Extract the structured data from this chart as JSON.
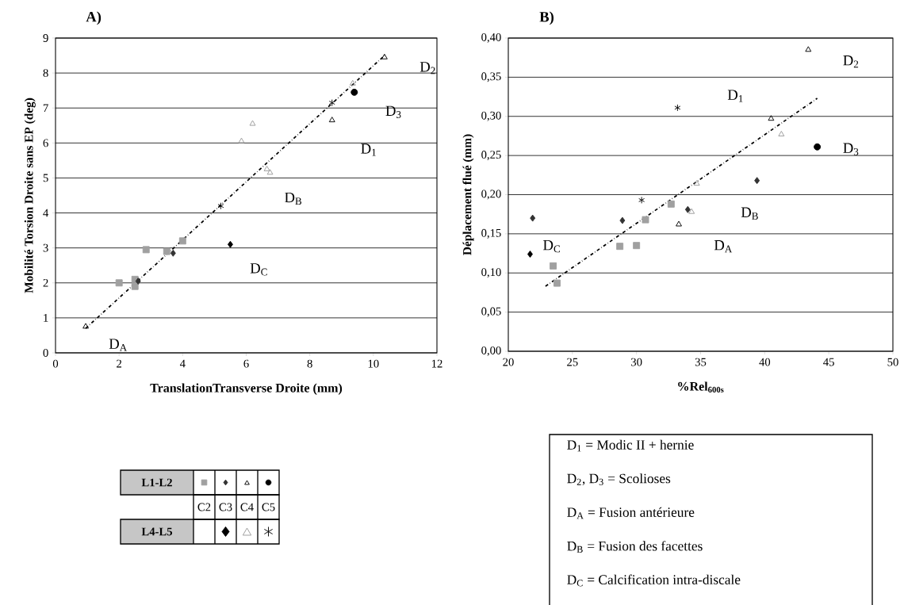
{
  "chart_data": [
    {
      "type": "scatter",
      "title": "A)",
      "xlabel": "TranslationTransverse Droite (mm)",
      "ylabel": "Mobilité Torsion Droite sans EP (deg)",
      "xlim": [
        0,
        12
      ],
      "ylim": [
        0,
        9
      ],
      "xticks": [
        0,
        2,
        4,
        6,
        8,
        10,
        12
      ],
      "yticks": [
        0,
        1,
        2,
        3,
        4,
        5,
        6,
        7,
        8,
        9
      ],
      "grid": "y",
      "series": [
        {
          "type": "scatter",
          "marker": "square",
          "color": "#a0a0a0",
          "x": [
            2.0,
            2.5,
            2.5,
            2.85,
            3.5,
            4.0
          ],
          "values": [
            2.0,
            2.1,
            1.9,
            2.95,
            2.9,
            3.2
          ]
        },
        {
          "type": "scatter",
          "marker": "diamond",
          "color": "#333333",
          "x": [
            2.6,
            3.7
          ],
          "values": [
            2.05,
            2.85
          ]
        },
        {
          "type": "scatter",
          "marker": "triangle",
          "color": "#000000",
          "x": [
            0.95,
            8.7,
            10.35
          ],
          "values": [
            0.75,
            6.65,
            8.45
          ]
        },
        {
          "type": "scatter",
          "marker": "circle",
          "color": "#000000",
          "x": [
            9.4
          ],
          "values": [
            7.45
          ]
        },
        {
          "type": "scatter",
          "marker": "diamond",
          "color": "#000000",
          "x": [
            5.5
          ],
          "values": [
            3.1
          ]
        },
        {
          "type": "scatter",
          "marker": "triangle",
          "color": "#9a9a9a",
          "x": [
            5.85,
            6.2,
            6.65,
            6.75,
            9.35
          ],
          "values": [
            6.05,
            6.55,
            5.25,
            5.15,
            7.7
          ]
        },
        {
          "type": "scatter",
          "marker": "cross",
          "color": "#000000",
          "x": [
            5.2,
            8.7
          ],
          "values": [
            4.2,
            7.15
          ]
        },
        {
          "type": "line",
          "line_style": "dashed",
          "marker": "none",
          "color": "#000000",
          "x": [
            0.95,
            10.35
          ],
          "values": [
            0.7,
            8.5
          ]
        }
      ],
      "annotations": [
        "D$_{2}$",
        "D$_{3}$",
        "D$_{1}$",
        "D$_{B}$",
        "D$_{C}$",
        "D$_{A}$"
      ]
    },
    {
      "type": "scatter",
      "title": "B)",
      "xlabel": "%Rel$_{600s}$",
      "ylabel": "Déplacement flué (mm)",
      "xlim": [
        20,
        50
      ],
      "ylim": [
        0,
        0.4
      ],
      "xticks": [
        20,
        25,
        30,
        35,
        40,
        45,
        50
      ],
      "yticks": [
        {
          "value": 0,
          "label": "0,00"
        },
        {
          "value": 0.05,
          "label": "0,05"
        },
        {
          "value": 0.1,
          "label": "0,10"
        },
        {
          "value": 0.15,
          "label": "0,15"
        },
        {
          "value": 0.2,
          "label": "0,20"
        },
        {
          "value": 0.25,
          "label": "0,25"
        },
        {
          "value": 0.3,
          "label": "0,30"
        },
        {
          "value": 0.35,
          "label": "0,35"
        },
        {
          "value": 0.4,
          "label": "0,40"
        }
      ],
      "grid": "y",
      "series": [
        {
          "type": "scatter",
          "marker": "square",
          "color": "#a0a0a0",
          "x": [
            23.5,
            23.8,
            28.7,
            30.0,
            30.7,
            32.7
          ],
          "values": [
            0.109,
            0.087,
            0.134,
            0.135,
            0.168,
            0.188
          ]
        },
        {
          "type": "scatter",
          "marker": "diamond",
          "color": "#333333",
          "x": [
            21.9,
            28.9,
            34.0,
            39.4
          ],
          "values": [
            0.17,
            0.167,
            0.181,
            0.218
          ]
        },
        {
          "type": "scatter",
          "marker": "triangle",
          "color": "#000000",
          "x": [
            33.3,
            40.5,
            43.4
          ],
          "values": [
            0.162,
            0.297,
            0.385
          ]
        },
        {
          "type": "scatter",
          "marker": "circle",
          "color": "#000000",
          "x": [
            44.1
          ],
          "values": [
            0.261
          ]
        },
        {
          "type": "scatter",
          "marker": "diamond",
          "color": "#000000",
          "x": [
            21.7
          ],
          "values": [
            0.124
          ]
        },
        {
          "type": "scatter",
          "marker": "triangle",
          "color": "#9a9a9a",
          "x": [
            34.3,
            34.7,
            41.3
          ],
          "values": [
            0.178,
            0.214,
            0.277
          ]
        },
        {
          "type": "scatter",
          "marker": "cross",
          "color": "#000000",
          "x": [
            30.4,
            33.2
          ],
          "values": [
            0.193,
            0.311
          ]
        },
        {
          "type": "line",
          "line_style": "dashed",
          "marker": "none",
          "color": "#000000",
          "x": [
            22.9,
            44.1
          ],
          "values": [
            0.083,
            0.323
          ]
        }
      ],
      "annotations": [
        "D$_{2}$",
        "D$_{1}$",
        "D$_{3}$",
        "D$_{B}$",
        "D$_{A}$",
        "D$_{C}$"
      ]
    },
    {
      "type": "other",
      "annotations": [
        "L1-L2",
        "C2",
        "C3",
        "C4",
        "C5",
        "L4-L5"
      ]
    },
    {
      "type": "other",
      "annotations": [
        "D$_{1}$ = Modic II + hernie",
        "D$_{2}$, D$_{3}$ = Scolioses",
        "D$_{A}$ = Fusion antérieure",
        "D$_{B}$ = Fusion des facettes",
        "D$_{C}$ = Calcification intra-discale"
      ]
    }
  ]
}
